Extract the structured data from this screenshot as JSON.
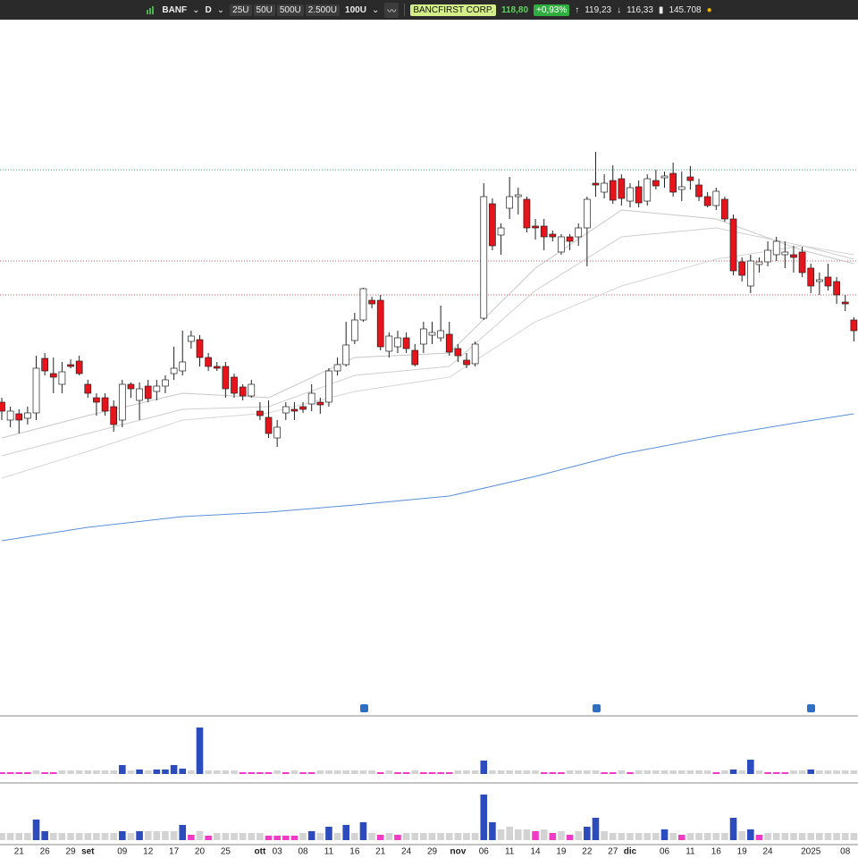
{
  "toolbar": {
    "symbol": "BANF",
    "interval": "D",
    "bars_buttons": [
      "25U",
      "50U",
      "500U",
      "2.500U"
    ],
    "bars_selected": "100U",
    "name": "BANCFIRST CORP.",
    "last": "118,80",
    "change": "+0,93%",
    "high": "119,23",
    "low": "116,33",
    "volume": "145.708"
  },
  "chart_data": [
    {
      "type": "candlestick",
      "up_color": "#ffffff",
      "down_color": "#e8141b",
      "ylim": [
        0,
        780
      ],
      "categories": [
        null,
        null,
        "21",
        null,
        null,
        "26",
        null,
        null,
        "29",
        null,
        "set",
        null,
        null,
        null,
        "09",
        null,
        null,
        "12",
        null,
        null,
        "17",
        null,
        null,
        "20",
        null,
        null,
        "25",
        null,
        null,
        null,
        "ott",
        null,
        "03",
        null,
        null,
        "08",
        null,
        null,
        "11",
        null,
        null,
        "16",
        null,
        null,
        "21",
        null,
        null,
        "24",
        null,
        null,
        "29",
        null,
        null,
        "nov",
        null,
        null,
        "06",
        null,
        null,
        "11",
        null,
        null,
        "14",
        null,
        null,
        "19",
        null,
        null,
        "22",
        null,
        null,
        "27",
        null,
        "dic",
        null,
        null,
        null,
        "06",
        null,
        null,
        "11",
        null,
        null,
        "16",
        null,
        null,
        "19",
        null,
        null,
        "24",
        null,
        null,
        null,
        null,
        "2025",
        null,
        null,
        null,
        "08",
        null
      ],
      "open": [
        350,
        330,
        337,
        332,
        338,
        399,
        382,
        370,
        392,
        396,
        370,
        355,
        355,
        345,
        330,
        370,
        352,
        368,
        362,
        368,
        382,
        385,
        418,
        420,
        400,
        390,
        390,
        378,
        367,
        357,
        340,
        333,
        310,
        338,
        342,
        345,
        348,
        350,
        350,
        385,
        392,
        419,
        442,
        464,
        464,
        407,
        412,
        422,
        408,
        415,
        425,
        422,
        426,
        410,
        397,
        393,
        444,
        572,
        537,
        567,
        580,
        577,
        547,
        547,
        538,
        518,
        535,
        535,
        545,
        595,
        585,
        598,
        600,
        575,
        591,
        575,
        598,
        601,
        606,
        588,
        602,
        593,
        580,
        570,
        577,
        555,
        507,
        480,
        504,
        507,
        515,
        515,
        515,
        518,
        500,
        485,
        490,
        485,
        462,
        442
      ],
      "high": [
        355,
        345,
        342,
        345,
        402,
        405,
        400,
        395,
        398,
        402,
        375,
        360,
        360,
        352,
        375,
        372,
        372,
        375,
        375,
        380,
        412,
        430,
        430,
        425,
        405,
        395,
        395,
        382,
        370,
        375,
        350,
        352,
        330,
        350,
        350,
        350,
        370,
        355,
        388,
        400,
        440,
        450,
        478,
        468,
        470,
        428,
        430,
        428,
        415,
        440,
        440,
        458,
        440,
        415,
        405,
        418,
        595,
        578,
        550,
        602,
        590,
        580,
        555,
        555,
        542,
        538,
        538,
        550,
        580,
        630,
        605,
        615,
        605,
        595,
        598,
        605,
        610,
        608,
        618,
        608,
        614,
        600,
        585,
        590,
        580,
        560,
        512,
        515,
        512,
        530,
        535,
        530,
        525,
        524,
        505,
        495,
        505,
        490,
        470,
        445
      ],
      "low": [
        330,
        322,
        315,
        325,
        330,
        380,
        360,
        360,
        388,
        380,
        355,
        335,
        335,
        317,
        322,
        355,
        330,
        350,
        352,
        360,
        375,
        380,
        410,
        390,
        385,
        385,
        355,
        355,
        352,
        355,
        330,
        310,
        300,
        330,
        330,
        338,
        340,
        337,
        345,
        380,
        390,
        415,
        440,
        455,
        408,
        400,
        405,
        405,
        390,
        405,
        415,
        418,
        402,
        395,
        388,
        390,
        442,
        520,
        515,
        555,
        560,
        540,
        532,
        520,
        530,
        515,
        520,
        525,
        502,
        580,
        578,
        572,
        570,
        568,
        568,
        570,
        588,
        590,
        580,
        575,
        588,
        575,
        568,
        565,
        552,
        492,
        485,
        472,
        495,
        502,
        508,
        500,
        495,
        490,
        472,
        470,
        475,
        460,
        452,
        418
      ],
      "close": [
        340,
        340,
        330,
        338,
        388,
        385,
        378,
        384,
        390,
        382,
        360,
        350,
        340,
        325,
        370,
        365,
        365,
        354,
        368,
        375,
        388,
        395,
        424,
        400,
        390,
        388,
        365,
        360,
        357,
        370,
        335,
        315,
        322,
        345,
        340,
        342,
        360,
        347,
        385,
        392,
        414,
        442,
        477,
        460,
        412,
        424,
        422,
        410,
        392,
        432,
        428,
        430,
        406,
        402,
        392,
        415,
        580,
        525,
        545,
        580,
        582,
        545,
        545,
        535,
        535,
        535,
        530,
        545,
        577,
        593,
        595,
        576,
        578,
        590,
        573,
        600,
        592,
        603,
        585,
        591,
        598,
        580,
        570,
        586,
        555,
        497,
        492,
        508,
        507,
        520,
        530,
        518,
        512,
        495,
        480,
        487,
        480,
        470,
        460,
        430
      ],
      "lines": [
        {
          "color": "#5b8fd9",
          "x": [
            0,
            10,
            21,
            31,
            41,
            52,
            62,
            72,
            83,
            93,
            99
          ],
          "values": [
            195,
            210,
            222,
            227,
            235,
            245,
            267,
            292,
            312,
            328,
            337
          ]
        },
        {
          "color": "#c8c8c8",
          "x": [
            0,
            10,
            21,
            31,
            41,
            52,
            62,
            72,
            83,
            93,
            99
          ],
          "values": [
            310,
            335,
            360,
            355,
            400,
            405,
            500,
            565,
            555,
            520,
            505
          ]
        },
        {
          "color": "#cfcfcf",
          "x": [
            0,
            10,
            21,
            31,
            41,
            52,
            62,
            72,
            83,
            93,
            99
          ],
          "values": [
            290,
            315,
            342,
            345,
            380,
            390,
            475,
            535,
            545,
            525,
            510
          ]
        },
        {
          "color": "#d6d6d6",
          "x": [
            0,
            10,
            21,
            31,
            41,
            52,
            62,
            72,
            83,
            93,
            99
          ],
          "values": [
            265,
            295,
            330,
            338,
            362,
            378,
            440,
            480,
            510,
            525,
            515
          ]
        }
      ],
      "levels": [
        {
          "value": 610,
          "color": "#3aa86a"
        },
        {
          "value": 508,
          "color": "#e05a5a"
        },
        {
          "value": 470,
          "color": "#e05a5a"
        }
      ]
    },
    {
      "type": "bar",
      "ylim": [
        0,
        60
      ],
      "palette": {
        "b": "#2c4bbd",
        "m": "#f03bc6",
        "g": "#d3d3d3"
      },
      "color_codes": "mmmmgmmgggggggbgbgbbbbgbggggmmmmgmgmmgggggggmgmmgmmmmgggbggggggmmmggggmmgmgggggggggmgbgbgmmmggbggggg",
      "values": [
        2,
        2,
        2,
        2,
        4,
        2,
        2,
        4,
        4,
        4,
        4,
        4,
        4,
        4,
        10,
        4,
        5,
        4,
        5,
        5,
        10,
        6,
        4,
        52,
        4,
        4,
        4,
        4,
        2,
        2,
        2,
        2,
        4,
        2,
        4,
        2,
        2,
        4,
        4,
        4,
        4,
        4,
        4,
        4,
        2,
        4,
        2,
        2,
        4,
        2,
        2,
        2,
        2,
        4,
        4,
        4,
        15,
        4,
        4,
        4,
        4,
        4,
        4,
        2,
        2,
        2,
        4,
        4,
        4,
        4,
        2,
        2,
        4,
        2,
        4,
        4,
        4,
        4,
        4,
        4,
        4,
        4,
        4,
        2,
        4,
        5,
        4,
        16,
        4,
        2,
        2,
        2,
        4,
        4,
        5,
        4,
        4,
        4,
        4,
        4
      ]
    },
    {
      "type": "bar",
      "ylim": [
        0,
        60
      ],
      "palette": {
        "b": "#2c4bbd",
        "m": "#f03bc6",
        "g": "#d3d3d3"
      },
      "color_codes": "ggggbbggggggggbgbggggbmgmggggggmmmmgbgbgbgbgmgmgggggggggbbggggmgmgmgbbgggggggbgmgggggbgbmggggggggggg",
      "values": [
        8,
        8,
        8,
        8,
        23,
        10,
        8,
        8,
        8,
        8,
        8,
        8,
        8,
        8,
        10,
        8,
        10,
        10,
        10,
        10,
        10,
        17,
        6,
        10,
        5,
        8,
        8,
        8,
        8,
        8,
        8,
        5,
        5,
        5,
        5,
        8,
        10,
        8,
        15,
        8,
        17,
        8,
        20,
        8,
        6,
        8,
        6,
        8,
        8,
        8,
        8,
        8,
        8,
        8,
        8,
        8,
        51,
        20,
        12,
        15,
        12,
        12,
        10,
        12,
        8,
        10,
        6,
        10,
        15,
        25,
        10,
        8,
        8,
        8,
        8,
        8,
        8,
        12,
        8,
        6,
        8,
        8,
        8,
        8,
        8,
        25,
        10,
        12,
        6,
        8,
        8,
        8,
        8,
        8,
        8,
        8,
        8,
        8,
        8,
        8
      ]
    }
  ]
}
